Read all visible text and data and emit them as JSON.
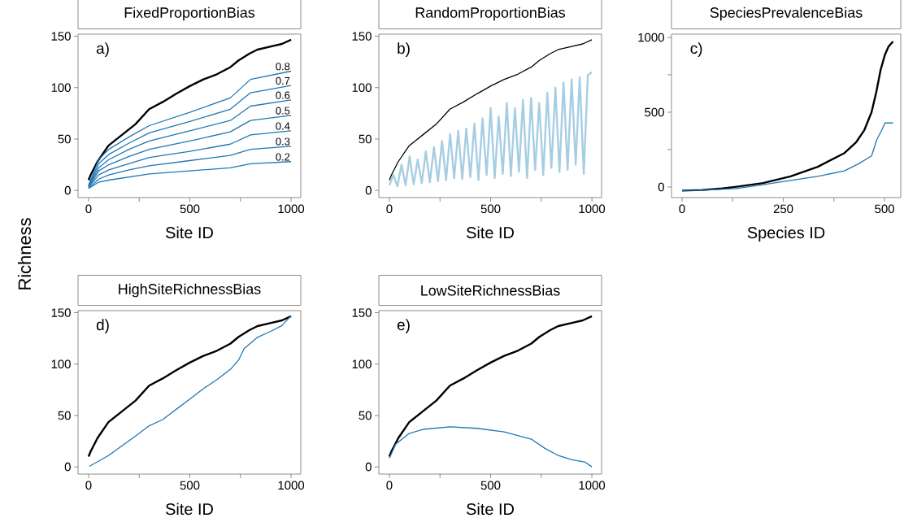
{
  "chart_data": [
    {
      "type": "line",
      "title": "FixedProportionBias",
      "xlabel": "Site ID",
      "annotations": [
        "a)"
      ],
      "xlim": [
        -52,
        1048
      ],
      "ylim": [
        -7,
        152
      ],
      "xticks": [
        0,
        {
          "value": 250,
          "label": null
        },
        500,
        {
          "value": 750,
          "label": null
        },
        1000
      ],
      "yticks": [
        0,
        50,
        100,
        150
      ],
      "series": [
        {
          "color": "#000000",
          "x": [
            0,
            10,
            44,
            98,
            165,
            232,
            299,
            366,
            433,
            500,
            567,
            634,
            701,
            741,
            794,
            834,
            901,
            955,
            1000
          ],
          "values": [
            10,
            15,
            28,
            43.5,
            54,
            64.5,
            79,
            86,
            94,
            101.5,
            108,
            113,
            120,
            126.5,
            133,
            137,
            140,
            142.5,
            146.5
          ]
        },
        {
          "name": "0.2",
          "color": "#1f78b4",
          "x": [
            0,
            50,
            100,
            200,
            300,
            500,
            700,
            800,
            1000
          ],
          "values": [
            2,
            8,
            10,
            13,
            16,
            19,
            22,
            26,
            28
          ]
        },
        {
          "name": "0.3",
          "color": "#1f78b4",
          "x": [
            0,
            50,
            100,
            200,
            300,
            500,
            700,
            800,
            1000
          ],
          "values": [
            2,
            11,
            15,
            20,
            24,
            29,
            34,
            40,
            43
          ]
        },
        {
          "name": "0.4",
          "color": "#1f78b4",
          "x": [
            0,
            50,
            100,
            200,
            300,
            500,
            700,
            800,
            1000
          ],
          "values": [
            3,
            15,
            20,
            26,
            32,
            38,
            45,
            54,
            58
          ]
        },
        {
          "name": "0.5",
          "color": "#1f78b4",
          "x": [
            0,
            50,
            100,
            200,
            300,
            500,
            700,
            800,
            1000
          ],
          "values": [
            3,
            19,
            25,
            33,
            40,
            48,
            57,
            68,
            73
          ]
        },
        {
          "name": "0.6",
          "color": "#1f78b4",
          "x": [
            0,
            50,
            100,
            200,
            300,
            500,
            700,
            800,
            1000
          ],
          "values": [
            4,
            22,
            30,
            40,
            48,
            58,
            68,
            82,
            88
          ]
        },
        {
          "name": "0.7",
          "color": "#1f78b4",
          "x": [
            0,
            50,
            100,
            200,
            300,
            500,
            700,
            800,
            1000
          ],
          "values": [
            4,
            26,
            35,
            46,
            56,
            67,
            79,
            95,
            102
          ]
        },
        {
          "name": "0.8",
          "color": "#1f78b4",
          "x": [
            0,
            50,
            100,
            200,
            300,
            500,
            700,
            800,
            1000
          ],
          "values": [
            5,
            30,
            40,
            52,
            63,
            76,
            90,
            108,
            116
          ]
        }
      ]
    },
    {
      "type": "line",
      "title": "RandomProportionBias",
      "xlabel": "Site ID",
      "annotations": [
        "b)"
      ],
      "xlim": [
        -52,
        1048
      ],
      "ylim": [
        -7,
        152
      ],
      "xticks": [
        0,
        {
          "value": 250,
          "label": null
        },
        500,
        {
          "value": 750,
          "label": null
        },
        1000
      ],
      "yticks": [
        0,
        50,
        100,
        150
      ],
      "series": [
        {
          "color": "#a6cee3",
          "x": [
            0,
            20,
            40,
            60,
            80,
            100,
            120,
            140,
            160,
            180,
            200,
            220,
            240,
            260,
            280,
            300,
            320,
            340,
            360,
            380,
            400,
            420,
            440,
            460,
            480,
            500,
            520,
            540,
            560,
            580,
            600,
            620,
            640,
            660,
            680,
            700,
            720,
            740,
            760,
            780,
            800,
            820,
            840,
            860,
            880,
            900,
            920,
            940,
            960,
            980,
            1000
          ],
          "values": [
            5,
            15,
            4,
            25,
            5,
            33,
            6,
            30,
            7,
            38,
            8,
            42,
            9,
            48,
            10,
            55,
            12,
            58,
            11,
            60,
            13,
            65,
            10,
            70,
            15,
            80,
            12,
            72,
            16,
            85,
            14,
            80,
            18,
            88,
            12,
            90,
            20,
            85,
            15,
            95,
            22,
            100,
            18,
            105,
            20,
            108,
            25,
            110,
            16,
            112,
            115
          ]
        },
        {
          "color": "#000000",
          "x": [
            0,
            10,
            44,
            98,
            165,
            232,
            299,
            366,
            433,
            500,
            567,
            634,
            701,
            741,
            794,
            834,
            901,
            955,
            1000
          ],
          "values": [
            10,
            15,
            28,
            43.5,
            54,
            64.5,
            79,
            86,
            94,
            101.5,
            108,
            113,
            120,
            126.5,
            133,
            137,
            140,
            142.5,
            146.5
          ]
        }
      ]
    },
    {
      "type": "line",
      "title": "SpeciesPrevalenceBias",
      "xlabel": "Species ID",
      "annotations": [
        "c)"
      ],
      "xlim": [
        -26,
        540
      ],
      "ylim": [
        -71,
        1022
      ],
      "xticks": [
        0,
        {
          "value": 125,
          "label": null
        },
        250,
        {
          "value": 375,
          "label": null
        },
        500
      ],
      "yticks": [
        0,
        {
          "value": 250,
          "label": null
        },
        500,
        {
          "value": 750,
          "label": null
        },
        1000
      ],
      "series": [
        {
          "color": "#000000",
          "x": [
            0,
            50,
            100,
            135,
            200,
            268,
            335,
            401,
            430,
            450,
            468,
            480,
            490,
            501,
            510,
            521
          ],
          "values": [
            -24,
            -20,
            -10,
            2,
            26,
            71,
            135,
            227,
            300,
            380,
            501,
            640,
            780,
            885,
            940,
            973
          ]
        },
        {
          "color": "#1f78b4",
          "x": [
            0,
            60,
            135,
            200,
            268,
            335,
            401,
            435,
            468,
            481,
            495,
            501,
            521
          ],
          "values": [
            -24,
            -20,
            -11,
            15,
            44,
            71,
            108,
            154,
            208,
            318,
            391,
            428,
            428
          ]
        }
      ]
    },
    {
      "type": "line",
      "title": "HighSiteRichnessBias",
      "xlabel": "Site ID",
      "ylabel": "Richness",
      "annotations": [
        "d)"
      ],
      "xlim": [
        -52,
        1048
      ],
      "ylim": [
        -7,
        152
      ],
      "xticks": [
        0,
        {
          "value": 250,
          "label": null
        },
        500,
        {
          "value": 750,
          "label": null
        },
        1000
      ],
      "yticks": [
        0,
        50,
        100,
        150
      ],
      "series": [
        {
          "color": "#000000",
          "x": [
            0,
            10,
            44,
            98,
            165,
            232,
            299,
            366,
            433,
            500,
            567,
            634,
            701,
            741,
            794,
            834,
            901,
            955,
            1000
          ],
          "values": [
            10,
            15,
            28,
            43.5,
            54,
            64.5,
            79,
            86,
            94,
            101.5,
            108,
            113,
            120,
            126.5,
            133,
            137,
            140,
            142.5,
            146.5
          ]
        },
        {
          "color": "#1f78b4",
          "x": [
            4,
            98,
            232,
            299,
            366,
            433,
            500,
            567,
            634,
            701,
            741,
            768,
            834,
            901,
            955,
            1000
          ],
          "values": [
            0.5,
            11,
            30,
            40,
            46,
            56,
            66,
            76,
            85,
            95,
            104,
            115,
            126,
            132,
            137.5,
            147
          ]
        }
      ]
    },
    {
      "type": "line",
      "title": "LowSiteRichnessBias",
      "xlabel": "Site ID",
      "annotations": [
        "e)"
      ],
      "xlim": [
        -52,
        1048
      ],
      "ylim": [
        -7,
        152
      ],
      "xticks": [
        0,
        {
          "value": 250,
          "label": null
        },
        500,
        {
          "value": 750,
          "label": null
        },
        1000
      ],
      "yticks": [
        0,
        50,
        100,
        150
      ],
      "series": [
        {
          "color": "#000000",
          "x": [
            0,
            10,
            44,
            98,
            165,
            232,
            299,
            366,
            433,
            500,
            567,
            634,
            701,
            741,
            794,
            834,
            901,
            955,
            1000
          ],
          "values": [
            10,
            15,
            28,
            43.5,
            54,
            64.5,
            79,
            86,
            94,
            101.5,
            108,
            113,
            120,
            126.5,
            133,
            137,
            140,
            142.5,
            146.5
          ]
        },
        {
          "color": "#1f78b4",
          "x": [
            0,
            31,
            98,
            165,
            299,
            433,
            567,
            701,
            768,
            834,
            901,
            968,
            1000
          ],
          "values": [
            8.5,
            22,
            32.5,
            36.5,
            39,
            37.5,
            34,
            27,
            18,
            11,
            7,
            4.5,
            0
          ]
        }
      ]
    }
  ]
}
